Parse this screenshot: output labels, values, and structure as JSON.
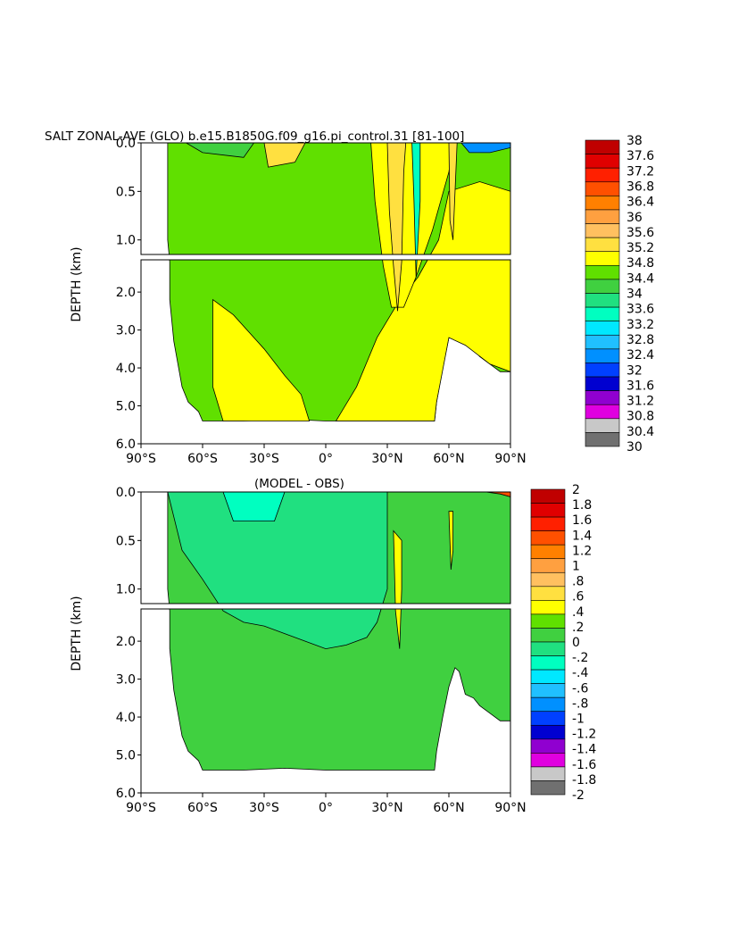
{
  "chart_data": [
    {
      "type": "heatmap",
      "title": "SALT ZONAL-AVE (GLO) b.e15.B1850G.f09_g16.pi_control.31 [81-100]",
      "ylabel": "DEPTH (km)",
      "xlim": [
        -90,
        90
      ],
      "ylim_km": [
        0,
        6.0
      ],
      "x_ticks": [
        "90°S",
        "60°S",
        "30°S",
        "0°",
        "30°N",
        "60°N",
        "90°N"
      ],
      "y_ticks_upper": [
        "0.0",
        "0.5",
        "1.0"
      ],
      "y_ticks_lower": [
        "2.0",
        "3.0",
        "4.0",
        "5.0",
        "6.0"
      ],
      "colorbar_levels": [
        "38",
        "37.6",
        "37.2",
        "36.8",
        "36.4",
        "36",
        "35.6",
        "35.2",
        "34.8",
        "34.4",
        "34",
        "33.6",
        "33.2",
        "32.8",
        "32.4",
        "32",
        "31.6",
        "31.2",
        "30.8",
        "30.4",
        "30"
      ],
      "colors": [
        "#c00000",
        "#e00000",
        "#ff2000",
        "#ff5000",
        "#ff8000",
        "#ffa040",
        "#ffc060",
        "#ffe040",
        "#ffff00",
        "#60e000",
        "#40d040",
        "#20e080",
        "#00ffc0",
        "#00e8ff",
        "#20c0ff",
        "#0090ff",
        "#0040ff",
        "#0000d0",
        "#9000d0",
        "#e000e0",
        "#c8c8c8",
        "#707070"
      ],
      "regions": {
        "background_value": 34.6,
        "bottom_band_value": 35.0,
        "north_upper_value": 35.0,
        "warm_south_patch_value": 35.4,
        "arctic_fresh_value": 32.0
      }
    },
    {
      "type": "heatmap",
      "title": "(MODEL - OBS)",
      "ylabel": "DEPTH (km)",
      "xlim": [
        -90,
        90
      ],
      "ylim_km": [
        0,
        6.0
      ],
      "x_ticks": [
        "90°S",
        "60°S",
        "30°S",
        "0°",
        "30°N",
        "60°N",
        "90°N"
      ],
      "y_ticks_upper": [
        "0.0",
        "0.5",
        "1.0"
      ],
      "y_ticks_lower": [
        "2.0",
        "3.0",
        "4.0",
        "5.0",
        "6.0"
      ],
      "colorbar_levels": [
        "2",
        "1.8",
        "1.6",
        "1.4",
        "1.2",
        "1",
        ".8",
        ".6",
        ".4",
        ".2",
        "0",
        "-.2",
        "-.4",
        "-.6",
        "-.8",
        "-1",
        "-1.2",
        "-1.4",
        "-1.6",
        "-1.8",
        "-2"
      ],
      "colors": [
        "#c00000",
        "#e00000",
        "#ff2000",
        "#ff5000",
        "#ff8000",
        "#ffa040",
        "#ffc060",
        "#ffe040",
        "#ffff00",
        "#60e000",
        "#40d040",
        "#20e080",
        "#00ffc0",
        "#00e8ff",
        "#20c0ff",
        "#0090ff",
        "#0040ff",
        "#0000d0",
        "#9000d0",
        "#e000e0",
        "#c8c8c8",
        "#707070"
      ],
      "regions": {
        "background_value": 0.1,
        "upper_negative_value": -0.1,
        "positive_plume_value": 0.5
      }
    }
  ]
}
